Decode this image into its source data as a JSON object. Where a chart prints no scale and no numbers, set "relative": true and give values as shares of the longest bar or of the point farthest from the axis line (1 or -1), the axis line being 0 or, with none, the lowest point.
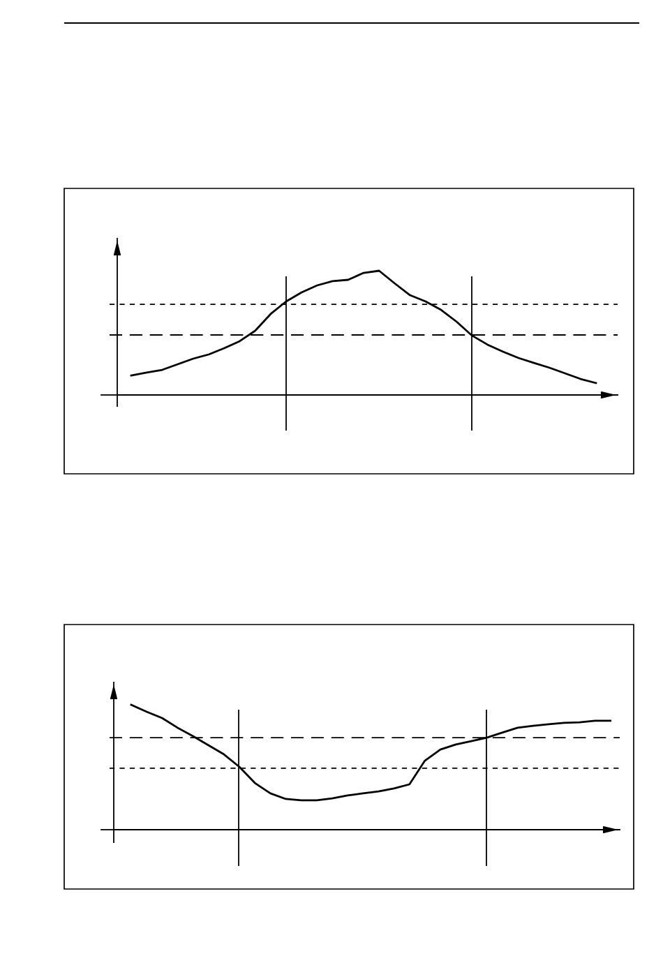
{
  "chart_data": [
    {
      "type": "line",
      "relative": true,
      "marker": "none",
      "line_style": "solid",
      "categories": [
        null,
        null,
        null,
        null,
        null,
        null,
        null,
        null,
        null,
        null,
        null,
        null,
        null,
        null,
        null,
        null,
        null,
        null,
        null,
        null,
        null,
        null,
        null,
        null,
        null,
        null,
        null,
        null,
        null,
        null,
        null
      ],
      "series": [
        {
          "color": "#000000",
          "values": [
            0.157,
            0.18,
            0.202,
            0.247,
            0.292,
            0.326,
            0.376,
            0.433,
            0.517,
            0.652,
            0.753,
            0.826,
            0.882,
            0.916,
            0.927,
            0.983,
            1.0,
            0.899,
            0.803,
            0.753,
            0.685,
            0.59,
            0.478,
            0.405,
            0.348,
            0.298,
            0.258,
            0.219,
            0.174,
            0.129,
            0.096
          ]
        }
      ],
      "ref_lines": [
        {
          "axis": "y",
          "value": 0.73,
          "color": "#000000",
          "line_style": "dotted"
        },
        {
          "axis": "y",
          "value": 0.483,
          "color": "#000000",
          "line_style": "dashed"
        }
      ]
    },
    {
      "type": "line",
      "relative": true,
      "marker": "none",
      "line_style": "solid",
      "categories": [
        null,
        null,
        null,
        null,
        null,
        null,
        null,
        null,
        null,
        null,
        null,
        null,
        null,
        null,
        null,
        null,
        null,
        null,
        null,
        null,
        null,
        null,
        null,
        null,
        null,
        null,
        null,
        null,
        null,
        null,
        null,
        null
      ],
      "series": [
        {
          "color": "#000000",
          "values": [
            1.0,
            0.944,
            0.894,
            0.816,
            0.749,
            0.676,
            0.603,
            0.503,
            0.374,
            0.291,
            0.246,
            0.235,
            0.235,
            0.251,
            0.274,
            0.291,
            0.307,
            0.33,
            0.363,
            0.553,
            0.642,
            0.682,
            0.709,
            0.737,
            0.777,
            0.816,
            0.832,
            0.844,
            0.855,
            0.86,
            0.872,
            0.872
          ]
        }
      ],
      "ref_lines": [
        {
          "axis": "y",
          "value": 0.737,
          "color": "#000000",
          "line_style": "dashed"
        },
        {
          "axis": "y",
          "value": 0.492,
          "color": "#000000",
          "line_style": "dotted"
        }
      ]
    }
  ]
}
